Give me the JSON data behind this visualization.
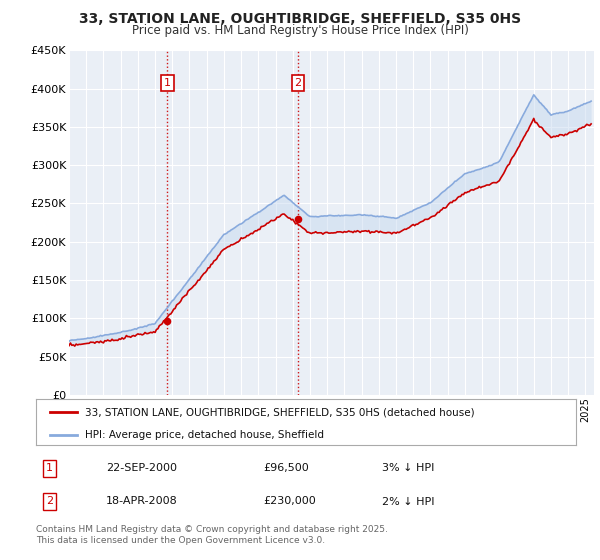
{
  "title": "33, STATION LANE, OUGHTIBRIDGE, SHEFFIELD, S35 0HS",
  "subtitle": "Price paid vs. HM Land Registry's House Price Index (HPI)",
  "ylabel_ticks": [
    "£0",
    "£50K",
    "£100K",
    "£150K",
    "£200K",
    "£250K",
    "£300K",
    "£350K",
    "£400K",
    "£450K"
  ],
  "ylim": [
    0,
    450000
  ],
  "xlim_start": 1995.0,
  "xlim_end": 2025.5,
  "sale1_x": 2000.72,
  "sale1_y": 96500,
  "sale1_label": "1",
  "sale2_x": 2008.3,
  "sale2_y": 230000,
  "sale2_label": "2",
  "line_color_property": "#cc0000",
  "line_color_hpi": "#88aadd",
  "fill_color": "#c8daf0",
  "vline_color": "#cc0000",
  "annotation_box_color": "#cc0000",
  "legend_label_property": "33, STATION LANE, OUGHTIBRIDGE, SHEFFIELD, S35 0HS (detached house)",
  "legend_label_hpi": "HPI: Average price, detached house, Sheffield",
  "table_row1": [
    "1",
    "22-SEP-2000",
    "£96,500",
    "3% ↓ HPI"
  ],
  "table_row2": [
    "2",
    "18-APR-2008",
    "£230,000",
    "2% ↓ HPI"
  ],
  "footer": "Contains HM Land Registry data © Crown copyright and database right 2025.\nThis data is licensed under the Open Government Licence v3.0.",
  "bg_color": "#ffffff",
  "plot_bg_color": "#eaeff6",
  "grid_color": "#ffffff"
}
